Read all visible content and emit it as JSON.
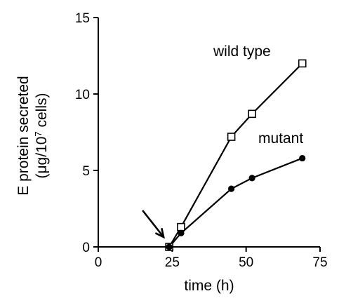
{
  "chart_data": {
    "type": "line",
    "xlabel": "time (h)",
    "ylabel_line1": "E protein secreted",
    "ylabel_line2_prefix": "(μg/10",
    "ylabel_line2_sup": "7",
    "ylabel_line2_suffix": " cells)",
    "xlim": [
      0,
      75
    ],
    "ylim": [
      0,
      15
    ],
    "xticks": [
      0,
      25,
      50,
      75
    ],
    "yticks": [
      0,
      5,
      10,
      15
    ],
    "xtick_labels": [
      "0",
      "25",
      "50",
      "75"
    ],
    "ytick_labels": [
      "0",
      "5",
      "10",
      "15"
    ],
    "grid": false,
    "legend": "none",
    "annotation": {
      "type": "arrow",
      "points_to": [
        24,
        0
      ]
    },
    "series": [
      {
        "name": "wild type",
        "marker": "open-square",
        "color": "#000000",
        "x": [
          24,
          28,
          45,
          52,
          69
        ],
        "y": [
          0,
          1.3,
          7.2,
          8.7,
          12
        ]
      },
      {
        "name": "mutant",
        "marker": "filled-circle",
        "color": "#000000",
        "x": [
          24,
          28,
          45,
          52,
          69
        ],
        "y": [
          0,
          0.9,
          3.8,
          4.5,
          5.8
        ]
      }
    ]
  }
}
